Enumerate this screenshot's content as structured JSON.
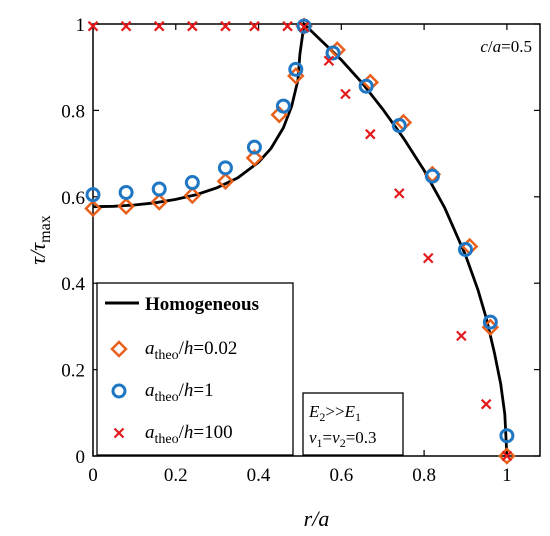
{
  "chart_data": {
    "type": "scatter",
    "annotation_top_right": "c/a=0.5",
    "annotation_box": {
      "line1": "E2>>E1",
      "line2": "ν1=ν2=0.3"
    },
    "xlabel": "r/a",
    "ylabel": "τ/τmax",
    "xlim": [
      0,
      1.08
    ],
    "ylim": [
      0,
      1
    ],
    "xticks": [
      "0",
      "0.2",
      "0.4",
      "0.6",
      "0.8",
      "1"
    ],
    "yticks": [
      "0",
      "0.2",
      "0.4",
      "0.6",
      "0.8",
      "1"
    ],
    "legend_position": "bottom-left",
    "series": [
      {
        "name": "Homogeneous",
        "style": "line",
        "color": "#000000",
        "x": [
          0,
          0.05,
          0.1,
          0.15,
          0.2,
          0.25,
          0.3,
          0.35,
          0.4,
          0.43,
          0.46,
          0.48,
          0.495,
          0.5,
          0.51,
          0.55,
          0.6,
          0.65,
          0.7,
          0.75,
          0.8,
          0.85,
          0.9,
          0.93,
          0.95,
          0.97,
          0.985,
          0.995,
          1.0
        ],
        "y": [
          0.577,
          0.578,
          0.581,
          0.586,
          0.594,
          0.605,
          0.621,
          0.644,
          0.68,
          0.712,
          0.76,
          0.81,
          0.87,
          0.93,
          1.0,
          0.963,
          0.917,
          0.864,
          0.803,
          0.736,
          0.661,
          0.574,
          0.465,
          0.385,
          0.32,
          0.238,
          0.167,
          0.097,
          0.0
        ]
      },
      {
        "name": "atheo/h=0.02",
        "name_parts": [
          "a",
          "theo",
          "/",
          "h",
          "=0.02"
        ],
        "style": "diamond",
        "color": "#e8601c",
        "x": [
          0.0,
          0.08,
          0.16,
          0.24,
          0.32,
          0.39,
          0.45,
          0.49,
          0.51,
          0.59,
          0.67,
          0.75,
          0.82,
          0.91,
          0.96,
          1.0
        ],
        "y": [
          0.573,
          0.578,
          0.588,
          0.603,
          0.636,
          0.69,
          0.79,
          0.88,
          0.995,
          0.94,
          0.865,
          0.772,
          0.652,
          0.485,
          0.298,
          0.0
        ]
      },
      {
        "name": "atheo/h=1",
        "name_parts": [
          "a",
          "theo",
          "/",
          "h",
          "=1"
        ],
        "style": "circle",
        "color": "#1f77c4",
        "x": [
          0.0,
          0.08,
          0.16,
          0.24,
          0.32,
          0.39,
          0.46,
          0.49,
          0.51,
          0.58,
          0.66,
          0.74,
          0.82,
          0.9,
          0.96,
          1.0
        ],
        "y": [
          0.605,
          0.61,
          0.618,
          0.633,
          0.667,
          0.715,
          0.81,
          0.895,
          0.995,
          0.933,
          0.856,
          0.765,
          0.648,
          0.478,
          0.31,
          0.047
        ]
      },
      {
        "name": "atheo/h=100",
        "name_parts": [
          "a",
          "theo",
          "/",
          "h",
          "=100"
        ],
        "style": "x",
        "color": "#e41a1c",
        "x": [
          0.0,
          0.08,
          0.16,
          0.24,
          0.32,
          0.39,
          0.47,
          0.51,
          0.57,
          0.61,
          0.67,
          0.74,
          0.81,
          0.89,
          0.95,
          1.0
        ],
        "y": [
          0.995,
          0.995,
          0.995,
          0.995,
          0.995,
          0.995,
          0.995,
          0.993,
          0.915,
          0.838,
          0.745,
          0.608,
          0.458,
          0.278,
          0.12,
          0.0
        ]
      }
    ]
  }
}
